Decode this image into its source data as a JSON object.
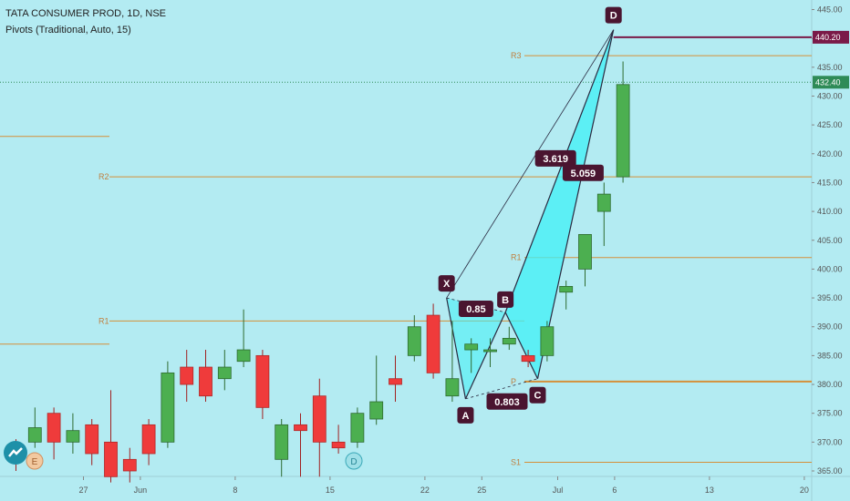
{
  "header": {
    "symbol_line": "TATA CONSUMER PROD, 1D, NSE",
    "indicator_line": "Pivots (Traditional, Auto, 15)"
  },
  "colors": {
    "background": "#b3ebf2",
    "up": "#4caf50",
    "down": "#ef3b3b",
    "pivot": "#d4903a",
    "pattern_fill": "#3ff0f5",
    "label_bg": "#4a1530",
    "price_line_D": "#7a1a48",
    "current_price": "#2e8b57"
  },
  "chart_data": {
    "type": "candlestick",
    "title": "TATA CONSUMER PROD, 1D, NSE",
    "ylim": [
      364,
      446
    ],
    "y_ticks": [
      "365.00",
      "370.00",
      "375.00",
      "380.00",
      "385.00",
      "390.00",
      "395.00",
      "400.00",
      "405.00",
      "410.00",
      "415.00",
      "420.00",
      "425.00",
      "430.00",
      "435.00",
      "440.00",
      "445.00"
    ],
    "x_ticks": [
      {
        "label": "27",
        "bar": 2.5
      },
      {
        "label": "Jun",
        "bar": 5.5
      },
      {
        "label": "8",
        "bar": 10.5
      },
      {
        "label": "15",
        "bar": 15.5
      },
      {
        "label": "22",
        "bar": 20.5
      },
      {
        "label": "25",
        "bar": 23.5
      },
      {
        "label": "Jul",
        "bar": 27.5
      },
      {
        "label": "6",
        "bar": 30.5
      },
      {
        "label": "13",
        "bar": 35.5
      },
      {
        "label": "20",
        "bar": 40.5
      },
      {
        "label": "27",
        "bar": 45.5
      }
    ],
    "candles": [
      {
        "o": 368.5,
        "h": 370.5,
        "l": 365,
        "c": 368
      },
      {
        "o": 370,
        "h": 376,
        "l": 369,
        "c": 372.5
      },
      {
        "o": 375,
        "h": 376,
        "l": 367,
        "c": 370
      },
      {
        "o": 370,
        "h": 375,
        "l": 368,
        "c": 372
      },
      {
        "o": 373,
        "h": 374,
        "l": 366,
        "c": 368
      },
      {
        "o": 370,
        "h": 379,
        "l": 363,
        "c": 364
      },
      {
        "o": 367,
        "h": 369,
        "l": 363,
        "c": 365
      },
      {
        "o": 373,
        "h": 374,
        "l": 366,
        "c": 368
      },
      {
        "o": 370,
        "h": 384,
        "l": 369,
        "c": 382
      },
      {
        "o": 383,
        "h": 386,
        "l": 377,
        "c": 380
      },
      {
        "o": 383,
        "h": 386,
        "l": 377,
        "c": 378
      },
      {
        "o": 381,
        "h": 386,
        "l": 379,
        "c": 383
      },
      {
        "o": 384,
        "h": 393,
        "l": 383,
        "c": 386
      },
      {
        "o": 385,
        "h": 386,
        "l": 374,
        "c": 376
      },
      {
        "o": 367,
        "h": 374,
        "l": 364,
        "c": 373
      },
      {
        "o": 373,
        "h": 375,
        "l": 364,
        "c": 372
      },
      {
        "o": 378,
        "h": 381,
        "l": 364,
        "c": 370
      },
      {
        "o": 370,
        "h": 373,
        "l": 368,
        "c": 369
      },
      {
        "o": 370,
        "h": 376,
        "l": 369,
        "c": 375
      },
      {
        "o": 374,
        "h": 385,
        "l": 373,
        "c": 377
      },
      {
        "o": 381,
        "h": 385,
        "l": 377,
        "c": 380
      },
      {
        "o": 385,
        "h": 392,
        "l": 384,
        "c": 390
      },
      {
        "o": 392,
        "h": 394,
        "l": 381,
        "c": 382
      },
      {
        "o": 378,
        "h": 391,
        "l": 377,
        "c": 381
      },
      {
        "o": 386,
        "h": 388,
        "l": 382,
        "c": 387
      },
      {
        "o": 386,
        "h": 388,
        "l": 383,
        "c": 386
      },
      {
        "o": 387,
        "h": 390,
        "l": 386,
        "c": 388
      },
      {
        "o": 385,
        "h": 386,
        "l": 383,
        "c": 384
      },
      {
        "o": 385,
        "h": 391,
        "l": 384,
        "c": 390
      },
      {
        "o": 396,
        "h": 398,
        "l": 393,
        "c": 397
      },
      {
        "o": 400,
        "h": 406,
        "l": 397,
        "c": 406
      },
      {
        "o": 410,
        "h": 415,
        "l": 404,
        "c": 413
      },
      {
        "o": 416,
        "h": 436,
        "l": 415,
        "c": 432
      }
    ],
    "pivots": [
      {
        "label": "R3",
        "value": 437
      },
      {
        "label": "R2",
        "value": 416
      },
      {
        "label": "R1",
        "value": 402
      },
      {
        "label": "P",
        "value": 380.5
      },
      {
        "label": "S1",
        "value": 366.5
      }
    ],
    "prev_period_pivots": [
      {
        "value": 423
      },
      {
        "value": 391
      },
      {
        "value": 387
      }
    ],
    "pattern": {
      "points": [
        {
          "label": "X",
          "bar": 22.7,
          "price": 395
        },
        {
          "label": "A",
          "bar": 23.7,
          "price": 377.5
        },
        {
          "label": "B",
          "bar": 25.8,
          "price": 392.5
        },
        {
          "label": "C",
          "bar": 27.5,
          "price": 381
        },
        {
          "label": "D",
          "bar": 31.5,
          "price": 441.5
        }
      ],
      "ratios": [
        {
          "text": "0.85"
        },
        {
          "text": "0.803"
        },
        {
          "text": "3.619"
        },
        {
          "text": "5.059"
        }
      ]
    },
    "price_labels": [
      {
        "text": "440.20",
        "value": 440.2
      },
      {
        "text": "432.40",
        "value": 432.4
      }
    ],
    "events": [
      {
        "text": "E"
      },
      {
        "text": "D"
      }
    ]
  }
}
